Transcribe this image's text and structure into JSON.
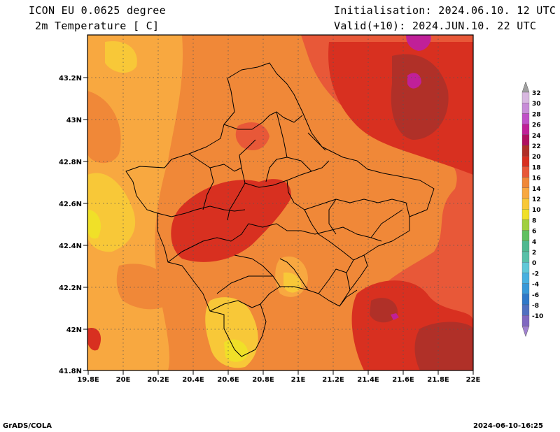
{
  "header": {
    "model": "ICON EU 0.0625 degree",
    "variable": "2m Temperature [ C]",
    "init": "Initialisation: 2024.06.10. 12 UTC",
    "valid": "Valid(+10): 2024.JUN.10. 22 UTC"
  },
  "footer": {
    "left": "GrADS/COLA",
    "right": "2024-06-10-16:25"
  },
  "axes": {
    "x_ticks": [
      "19.8E",
      "20E",
      "20.2E",
      "20.4E",
      "20.6E",
      "20.8E",
      "21E",
      "21.2E",
      "21.4E",
      "21.6E",
      "21.8E",
      "22E"
    ],
    "y_ticks": [
      "43.2N",
      "43N",
      "42.8N",
      "42.6N",
      "42.4N",
      "42.2N",
      "42N",
      "41.8N"
    ]
  },
  "colorbar": {
    "entries": [
      {
        "label": "32",
        "color": "#d8b8e0"
      },
      {
        "label": "30",
        "color": "#c88cd8"
      },
      {
        "label": "28",
        "color": "#c050c8"
      },
      {
        "label": "26",
        "color": "#c02098"
      },
      {
        "label": "24",
        "color": "#b01060"
      },
      {
        "label": "22",
        "color": "#b03028"
      },
      {
        "label": "20",
        "color": "#d83020"
      },
      {
        "label": "18",
        "color": "#e85838"
      },
      {
        "label": "16",
        "color": "#f08838"
      },
      {
        "label": "14",
        "color": "#f8a840"
      },
      {
        "label": "12",
        "color": "#f8c838"
      },
      {
        "label": "10",
        "color": "#f0e028"
      },
      {
        "label": "8",
        "color": "#a0d040"
      },
      {
        "label": "6",
        "color": "#60c060"
      },
      {
        "label": "4",
        "color": "#50b890"
      },
      {
        "label": "2",
        "color": "#58c0a8"
      },
      {
        "label": "0",
        "color": "#60c8d8"
      },
      {
        "label": "-2",
        "color": "#48b0e0"
      },
      {
        "label": "-4",
        "color": "#3898d8"
      },
      {
        "label": "-6",
        "color": "#3078c8"
      },
      {
        "label": "-8",
        "color": "#5070c0"
      },
      {
        "label": "-10",
        "color": "#8068c0"
      }
    ],
    "top_arrow_color": "#a0a0a0",
    "bottom_arrow_color": "#a080d0"
  }
}
